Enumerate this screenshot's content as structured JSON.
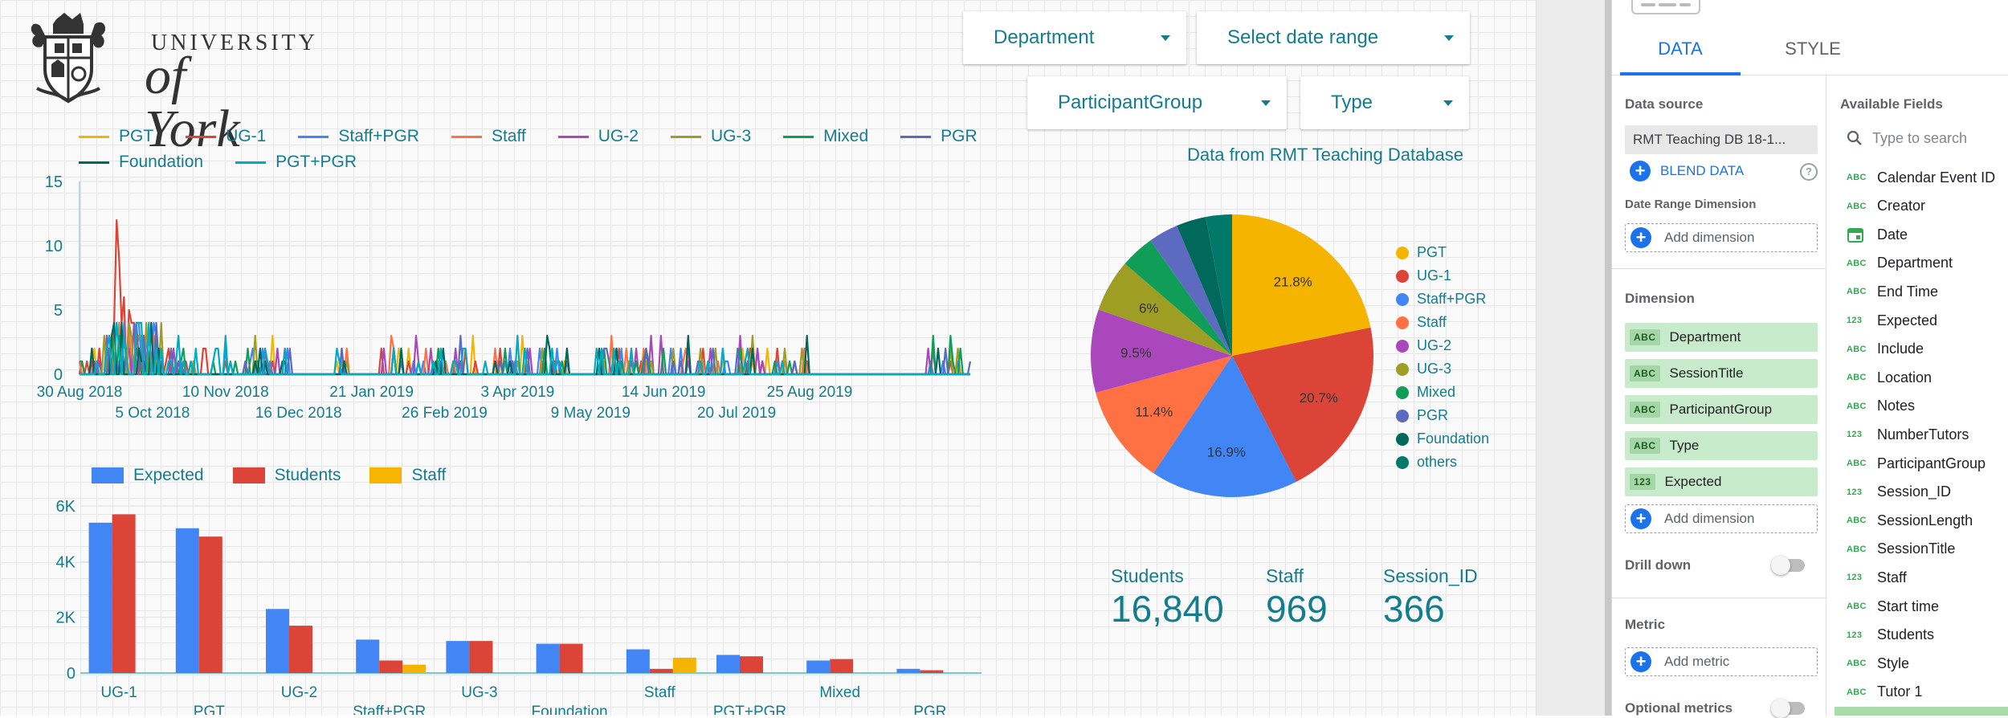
{
  "logo": {
    "line1": "UNIVERSITY",
    "line2": "of York"
  },
  "filters": {
    "department": "Department",
    "date_range": "Select date range",
    "participant_group": "ParticipantGroup",
    "type": "Type"
  },
  "line_chart": {
    "legend": [
      {
        "name": "PGT",
        "color": "#f4b400"
      },
      {
        "name": "UG-1",
        "color": "#db4437"
      },
      {
        "name": "Staff+PGR",
        "color": "#4285f4"
      },
      {
        "name": "Staff",
        "color": "#ff7043"
      },
      {
        "name": "UG-2",
        "color": "#ab47bc"
      },
      {
        "name": "UG-3",
        "color": "#9e9d24"
      },
      {
        "name": "Mixed",
        "color": "#0f9d58"
      },
      {
        "name": "PGR",
        "color": "#5c6bc0"
      },
      {
        "name": "Foundation",
        "color": "#00695c"
      },
      {
        "name": "PGT+PGR",
        "color": "#00acc1"
      }
    ]
  },
  "bar_chart": {
    "legend": [
      {
        "name": "Expected",
        "color": "#4285f4"
      },
      {
        "name": "Students",
        "color": "#db4437"
      },
      {
        "name": "Staff",
        "color": "#f4b400"
      }
    ]
  },
  "pie": {
    "title": "Data from RMT Teaching Database",
    "legend": [
      {
        "name": "PGT",
        "color": "#f4b400"
      },
      {
        "name": "UG-1",
        "color": "#db4437"
      },
      {
        "name": "Staff+PGR",
        "color": "#4285f4"
      },
      {
        "name": "Staff",
        "color": "#ff7043"
      },
      {
        "name": "UG-2",
        "color": "#ab47bc"
      },
      {
        "name": "UG-3",
        "color": "#9e9d24"
      },
      {
        "name": "Mixed",
        "color": "#0f9d58"
      },
      {
        "name": "PGR",
        "color": "#5c6bc0"
      },
      {
        "name": "Foundation",
        "color": "#00695c"
      },
      {
        "name": "others",
        "color": "#00796b"
      }
    ]
  },
  "scorecards": [
    {
      "label": "Students",
      "value": "16,840"
    },
    {
      "label": "Staff",
      "value": "969"
    },
    {
      "label": "Session_ID",
      "value": "366"
    }
  ],
  "chart_data": [
    {
      "type": "line",
      "title": "",
      "ylim": [
        0,
        15
      ],
      "yticks": [
        "0",
        "5",
        "10",
        "15"
      ],
      "xticks_top": [
        "30 Aug 2018",
        "10 Nov 2018",
        "21 Jan 2019",
        "3 Apr 2019",
        "14 Jun 2019",
        "25 Aug 2019"
      ],
      "xticks_bottom": [
        "5 Oct 2018",
        "16 Dec 2018",
        "26 Feb 2019",
        "9 May 2019",
        "20 Jul 2019"
      ],
      "series_note": "daily session counts per participant group; mostly 0-3 with a spike to ~12 (UG-1) in early Oct 2018",
      "peak": {
        "series": "UG-1",
        "date": "Oct 2018",
        "value": 12
      }
    },
    {
      "type": "bar",
      "categories": [
        "UG-1",
        "PGT",
        "UG-2",
        "Staff+PGR",
        "UG-3",
        "Foundation",
        "Staff",
        "PGT+PGR",
        "Mixed",
        "PGR"
      ],
      "series": [
        {
          "name": "Expected",
          "values": [
            5400,
            5200,
            2300,
            1200,
            1150,
            1050,
            850,
            650,
            450,
            150
          ]
        },
        {
          "name": "Students",
          "values": [
            5700,
            4900,
            1700,
            450,
            1150,
            1050,
            150,
            600,
            500,
            100
          ]
        },
        {
          "name": "Staff",
          "values": [
            0,
            0,
            0,
            300,
            0,
            0,
            550,
            0,
            0,
            0
          ]
        }
      ],
      "ylim": [
        0,
        6000
      ],
      "yticks": [
        "0",
        "2K",
        "4K",
        "6K"
      ]
    },
    {
      "type": "pie",
      "title": "Data from RMT Teaching Database",
      "categories": [
        "PGT",
        "UG-1",
        "Staff+PGR",
        "Staff",
        "UG-2",
        "UG-3",
        "Mixed",
        "PGR",
        "Foundation",
        "others"
      ],
      "values": [
        21.8,
        20.7,
        16.9,
        11.4,
        9.5,
        6.0,
        3.9,
        3.4,
        3.4,
        3.0
      ],
      "labels": [
        "21.8%",
        "20.7%",
        "16.9%",
        "11.4%",
        "9.5%",
        "6%",
        "",
        "",
        "",
        ""
      ]
    }
  ],
  "panel": {
    "tabs": {
      "data": "DATA",
      "style": "STYLE"
    },
    "data_source_label": "Data source",
    "data_source_value": "RMT Teaching DB 18-1...",
    "blend_data": "BLEND DATA",
    "help": "?",
    "date_range_dimension": "Date Range Dimension",
    "add_dimension": "Add dimension",
    "dimension_label": "Dimension",
    "dimensions": [
      {
        "type": "ABC",
        "name": "Department"
      },
      {
        "type": "ABC",
        "name": "SessionTitle"
      },
      {
        "type": "ABC",
        "name": "ParticipantGroup"
      },
      {
        "type": "ABC",
        "name": "Type"
      },
      {
        "type": "123",
        "name": "Expected"
      }
    ],
    "drill_down": "Drill down",
    "metric_label": "Metric",
    "add_metric": "Add metric",
    "optional_metrics": "Optional metrics",
    "available_fields_label": "Available Fields",
    "search_placeholder": "Type to search",
    "fields": [
      {
        "type": "ABC",
        "name": "Calendar Event ID"
      },
      {
        "type": "ABC",
        "name": "Creator"
      },
      {
        "type": "date",
        "name": "Date"
      },
      {
        "type": "ABC",
        "name": "Department"
      },
      {
        "type": "ABC",
        "name": "End Time"
      },
      {
        "type": "123",
        "name": "Expected"
      },
      {
        "type": "ABC",
        "name": "Include"
      },
      {
        "type": "ABC",
        "name": "Location"
      },
      {
        "type": "ABC",
        "name": "Notes"
      },
      {
        "type": "123",
        "name": "NumberTutors"
      },
      {
        "type": "ABC",
        "name": "ParticipantGroup"
      },
      {
        "type": "123",
        "name": "Session_ID"
      },
      {
        "type": "ABC",
        "name": "SessionLength"
      },
      {
        "type": "ABC",
        "name": "SessionTitle"
      },
      {
        "type": "123",
        "name": "Staff"
      },
      {
        "type": "ABC",
        "name": "Start time"
      },
      {
        "type": "123",
        "name": "Students"
      },
      {
        "type": "ABC",
        "name": "Style"
      },
      {
        "type": "ABC",
        "name": "Tutor 1"
      }
    ]
  }
}
